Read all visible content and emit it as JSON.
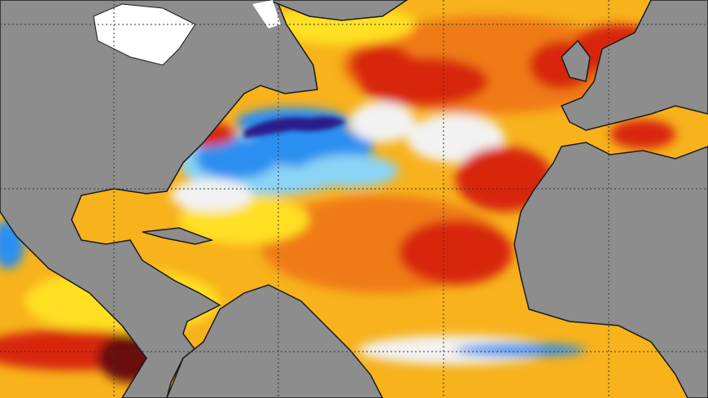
{
  "map": {
    "colors": {
      "land": "#8d8d8d",
      "ice": "#ffffff",
      "coast": "#1a1a1a",
      "warm_base": "#f7b21c",
      "warm_yellow": "#ffe020",
      "warm_orange": "#f07a14",
      "hot_red": "#d8280c",
      "hottest": "#6a0a08",
      "neutral": "#f2f2f2",
      "cool_light": "#8ad4f5",
      "cool": "#2a8ff0",
      "cold": "#2a1a8a",
      "grid": "#333333"
    },
    "grid": "dotted"
  }
}
